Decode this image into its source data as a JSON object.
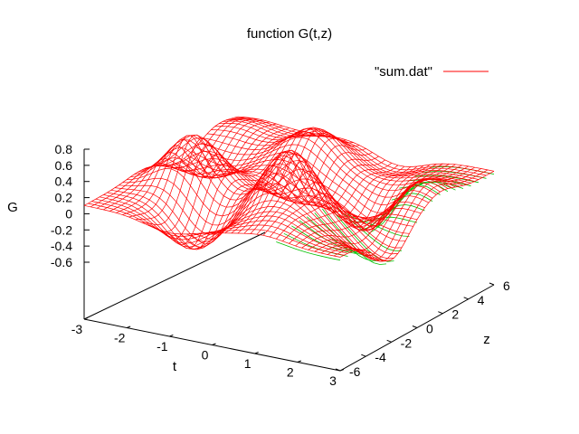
{
  "chart_data": {
    "type": "surface",
    "title": "function G(t,z)",
    "xlabel": "t",
    "ylabel": "z",
    "zlabel": "G",
    "legend": {
      "label": "\"sum.dat\"",
      "color": "#ff0000",
      "placement": "top-right"
    },
    "xlim": [
      -3,
      3
    ],
    "ylim": [
      -6,
      6
    ],
    "zlim": [
      -0.6,
      0.8
    ],
    "xticks": [
      "-3",
      "-2",
      "-1",
      "0",
      "1",
      "2",
      "3"
    ],
    "yticks": [
      "-6",
      "-4",
      "-2",
      "0",
      "2",
      "4",
      "6"
    ],
    "zticks": [
      "0.8",
      "0.6",
      "0.4",
      "0.2",
      "0",
      "-0.2",
      "-0.4",
      "-0.6"
    ],
    "top_color": "#ff0000",
    "bottom_color": "#00c000",
    "grid": false,
    "peaks": [
      {
        "t": 0.6,
        "z": -2.0,
        "G": 0.78
      },
      {
        "t": -1.8,
        "z": -1.5,
        "G": 0.68
      },
      {
        "t": -0.5,
        "z": 3.5,
        "G": 0.42
      },
      {
        "t": 2.3,
        "z": 1.8,
        "G": 0.35
      },
      {
        "t": 1.2,
        "z": -4.5,
        "G": 0.2
      },
      {
        "t": -2.5,
        "z": 4.5,
        "G": 0.15
      }
    ],
    "troughs": [
      {
        "t": 1.5,
        "z": 1.5,
        "G": -0.62
      },
      {
        "t": -1.0,
        "z": -4.0,
        "G": -0.55
      },
      {
        "t": 0.0,
        "z": 1.0,
        "G": -0.3
      },
      {
        "t": 2.8,
        "z": -2.0,
        "G": -0.45
      },
      {
        "t": -2.3,
        "z": 1.5,
        "G": -0.28
      },
      {
        "t": 0.8,
        "z": 5.5,
        "G": -0.2
      }
    ]
  }
}
